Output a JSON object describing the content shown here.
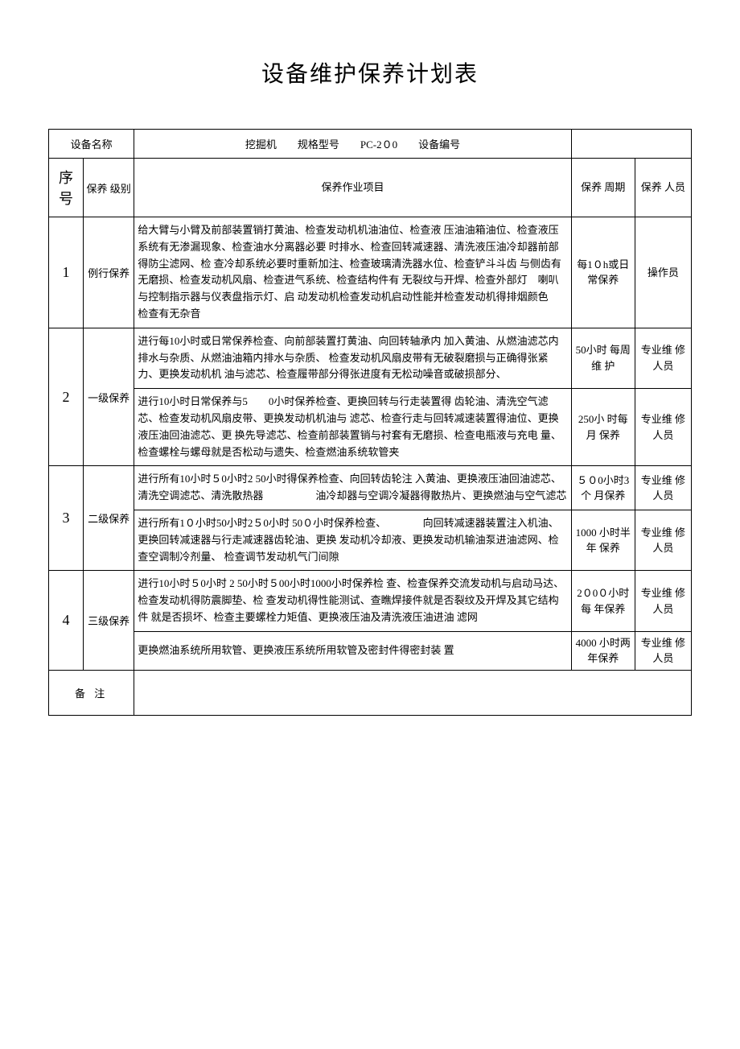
{
  "title": "设备维护保养计划表",
  "header": {
    "nameLabel": "设备名称",
    "nameValue": "挖掘机",
    "specLabel": "规格型号",
    "specValue": "PC-2０0",
    "codeLabel": "设备编号",
    "codeValue": ""
  },
  "columns": {
    "seq": "序 号",
    "level": "保养 级别",
    "content": "保养作业项目",
    "cycle": "保养 周期",
    "person": "保养 人员"
  },
  "rows": [
    {
      "seq": "1",
      "level": "例行保养",
      "items": [
        {
          "content": "给大臂与小臂及前部装置销打黄油、检查发动机机油油位、检查液 压油油箱油位、检查液压系统有无渗漏现象、检查油水分离器必要 时排水、检查回转减速器、清洗液压油冷却器前部得防尘滤网、检 查冷却系统必要时重新加注、检查玻璃清洗器水位、检查铲斗斗齿 与侧齿有无磨损、检查发动机风扇、检查进气系统、检查结构件有 无裂纹与开焊、检查外部灯　喇叭与控制指示器与仪表盘指示灯、启\n动发动机检查发动机启动性能并检查发动机得排烟颜色　　检查有无杂音",
          "cycle": "每1０h或日 常保养",
          "person": "操作员"
        }
      ]
    },
    {
      "seq": "2",
      "level": "一级保养",
      "items": [
        {
          "content": "进行每10小时或日常保养检查、向前部装置打黄油、向回转轴承内 加入黄油、从燃油滤芯内排水与杂质、从燃油油箱内排水与杂质、 检查发动机风扇皮带有无破裂磨损与正确得张紧力、更换发动机机 油与滤芯、检查履带部分得张进度有无松动噪音或破损部分、",
          "cycle": "50小时 每周维 护",
          "person": "专业维 修人员"
        },
        {
          "content": "进行10小时日常保养与5　　0小时保养检查、更换回转与行走装置得\n齿轮油、清洗空气滤芯、检查发动机风扇皮带、更换发动机机油与 滤芯、检查行走与回转减速装置得油位、更换液压油回油滤芯、更 换先导滤芯、检查前部装置销与衬套有无磨损、检查电瓶液与充电 量、检查螺栓与螺母就是否松动与遗失、检查燃油系统软管夹",
          "cycle": "250小 时每月 保养",
          "person": "专业维 修人员"
        }
      ]
    },
    {
      "seq": "3",
      "level": "二级保养",
      "items": [
        {
          "content": "进行所有10小时５0小时2 50小时得保养检查、向回转齿轮注 入黄油、更换液压油回油滤芯、清洗空调滤芯、清洗散热器　　　　　油冷却器与空调冷凝器得散热片、更换燃油与空气滤芯",
          "cycle": "５０0小时3个 月保养",
          "person": "专业维 修人员"
        },
        {
          "content": "进行所有1０小时50小时2５0小时 50０小时保养检查、　　　　向回转减速器装置注入机油、更换回转减速器与行走减速器齿轮油、更换 发动机冷却液、更换发动机输油泵进油滤网、检查空调制冷剂量、 检查调节发动机气门间隙",
          "cycle": "1000 小时半年 保养",
          "person": "专业维 修人员"
        }
      ]
    },
    {
      "seq": "4",
      "level": "三级保养",
      "items": [
        {
          "content": "进行10小时５0小时 2 50小时５00小时1000小时保养检 查、检查保养交流发动机与启动马达、检查发动机得防震脚垫、检 查发动机得性能测试、查瞧焊接件就是否裂纹及开焊及其它结构件 就是否损坏、检查主要螺栓力矩值、更换液压油及清洗液压油进油 滤网",
          "cycle": "2０0０小时每 年保养",
          "person": "专业维 修人员"
        },
        {
          "content": "更换燃油系统所用软管、更换液压系统所用软管及密封件得密封装 置",
          "cycle": "4000 小时两年保养",
          "person": "专业维 修人员"
        }
      ]
    }
  ],
  "noteLabel": "备 注",
  "noteValue": ""
}
